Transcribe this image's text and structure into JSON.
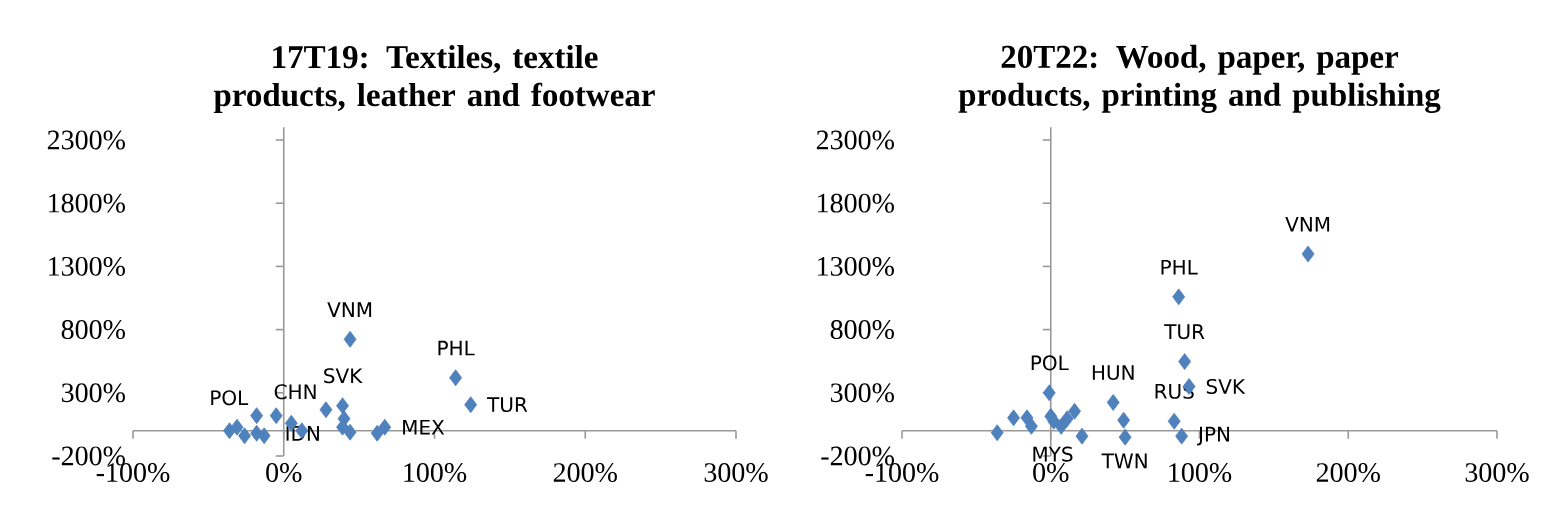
{
  "chart_data": [
    {
      "type": "scatter",
      "title": "17T19: Textiles, textile products, leather and footwear",
      "marker": "diamond",
      "xlim": [
        -100,
        300
      ],
      "ylim": [
        -200,
        2300
      ],
      "xticks": [
        {
          "value": -100,
          "label": "-100%"
        },
        {
          "value": 0,
          "label": "0%"
        },
        {
          "value": 100,
          "label": "100%"
        },
        {
          "value": 200,
          "label": "200%"
        },
        {
          "value": 300,
          "label": "300%"
        }
      ],
      "yticks": [
        {
          "value": -200,
          "label": "-200%"
        },
        {
          "value": 300,
          "label": "300%"
        },
        {
          "value": 800,
          "label": "800%"
        },
        {
          "value": 1300,
          "label": "1300%"
        },
        {
          "value": 1800,
          "label": "1800%"
        },
        {
          "value": 2300,
          "label": "2300%"
        }
      ],
      "series": [
        {
          "color": "#4f81bd",
          "x": [
            44,
            114,
            124,
            39,
            28,
            -18,
            -5,
            67,
            -36,
            -31,
            -26,
            -18,
            -13,
            5,
            12,
            40,
            39,
            44,
            62
          ],
          "values": [
            723,
            419,
            206,
            198,
            166,
            119,
            119,
            28,
            0,
            28,
            -40,
            -20,
            -40,
            59,
            0,
            95,
            28,
            -12,
            -20
          ]
        }
      ],
      "annotations": [
        {
          "text": "VNM",
          "x": 44,
          "y": 723
        },
        {
          "text": "PHL",
          "x": 114,
          "y": 419
        },
        {
          "text": "TUR",
          "x": 124,
          "y": 206
        },
        {
          "text": "SVK",
          "x": 39,
          "y": 198
        },
        {
          "text": "CHN",
          "x": 28,
          "y": 166
        },
        {
          "text": "POL",
          "x": -18,
          "y": 119
        },
        {
          "text": "IDN",
          "x": -5,
          "y": 119
        },
        {
          "text": "MEX",
          "x": 67,
          "y": 28
        }
      ]
    },
    {
      "type": "scatter",
      "title": "20T22: Wood, paper, paper products, printing and publishing",
      "marker": "diamond",
      "xlim": [
        -100,
        300
      ],
      "ylim": [
        -200,
        2300
      ],
      "xticks": [
        {
          "value": -100,
          "label": "-100%"
        },
        {
          "value": 0,
          "label": "0%"
        },
        {
          "value": 100,
          "label": "100%"
        },
        {
          "value": 200,
          "label": "200%"
        },
        {
          "value": 300,
          "label": "300%"
        }
      ],
      "yticks": [
        {
          "value": -200,
          "label": "-200%"
        },
        {
          "value": 300,
          "label": "300%"
        },
        {
          "value": 800,
          "label": "800%"
        },
        {
          "value": 1300,
          "label": "1300%"
        },
        {
          "value": 1800,
          "label": "1800%"
        },
        {
          "value": 2300,
          "label": "2300%"
        }
      ],
      "series": [
        {
          "color": "#4f81bd",
          "x": [
            173,
            86,
            90,
            93,
            83,
            88,
            42,
            50,
            21,
            -1,
            16,
            49,
            -36,
            -25,
            -16,
            -13,
            0,
            2,
            7,
            11
          ],
          "values": [
            1398,
            1059,
            547,
            350,
            75,
            -43,
            224,
            -51,
            -43,
            300,
            154,
            83,
            -16,
            102,
            102,
            35,
            114,
            75,
            35,
            94
          ]
        }
      ],
      "annotations": [
        {
          "text": "VNM",
          "x": 173,
          "y": 1398
        },
        {
          "text": "PHL",
          "x": 86,
          "y": 1059
        },
        {
          "text": "TUR",
          "x": 90,
          "y": 547
        },
        {
          "text": "SVK",
          "x": 93,
          "y": 350
        },
        {
          "text": "RUS",
          "x": 83,
          "y": 75
        },
        {
          "text": "JPN",
          "x": 88,
          "y": -43
        },
        {
          "text": "HUN",
          "x": 42,
          "y": 224
        },
        {
          "text": "TWN",
          "x": 50,
          "y": -51
        },
        {
          "text": "MYS",
          "x": 21,
          "y": -43
        },
        {
          "text": "POL",
          "x": -1,
          "y": 300
        }
      ]
    }
  ]
}
